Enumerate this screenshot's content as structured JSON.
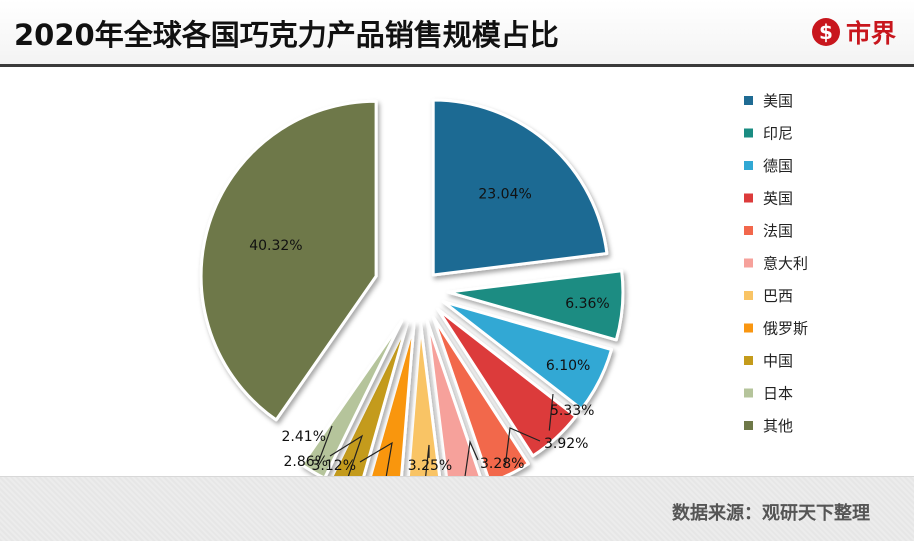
{
  "header": {
    "title": "2020年全球各国巧克力产品销售规模占比",
    "brand_name": "市界",
    "brand_color": "#c8161d"
  },
  "footer": {
    "source": "数据来源：观研天下整理"
  },
  "chart_data": {
    "type": "pie",
    "legend_position": "right",
    "slices": [
      {
        "label": "美国",
        "value": 23.04,
        "display": "23.04%",
        "color": "#1f6b93"
      },
      {
        "label": "印尼",
        "value": 6.36,
        "display": "6.36%",
        "color": "#1a8c82"
      },
      {
        "label": "德国",
        "value": 6.1,
        "display": "6.10%",
        "color": "#31a8d4"
      },
      {
        "label": "英国",
        "value": 5.33,
        "display": "5.33%",
        "color": "#dc3b3b"
      },
      {
        "label": "法国",
        "value": 3.92,
        "display": "3.92%",
        "color": "#f2674c"
      },
      {
        "label": "意大利",
        "value": 3.28,
        "display": "3.28%",
        "color": "#f6a19b"
      },
      {
        "label": "巴西",
        "value": 3.25,
        "display": "3.25%",
        "color": "#f9c465"
      },
      {
        "label": "俄罗斯",
        "value": 3.12,
        "display": "3.12%",
        "color": "#f99611"
      },
      {
        "label": "中国",
        "value": 2.86,
        "display": "2.86%",
        "color": "#c49b1b"
      },
      {
        "label": "日本",
        "value": 2.41,
        "display": "2.41%",
        "color": "#b5c49b"
      },
      {
        "label": "其他",
        "value": 40.32,
        "display": "40.32%",
        "color": "#6e7848"
      }
    ]
  }
}
